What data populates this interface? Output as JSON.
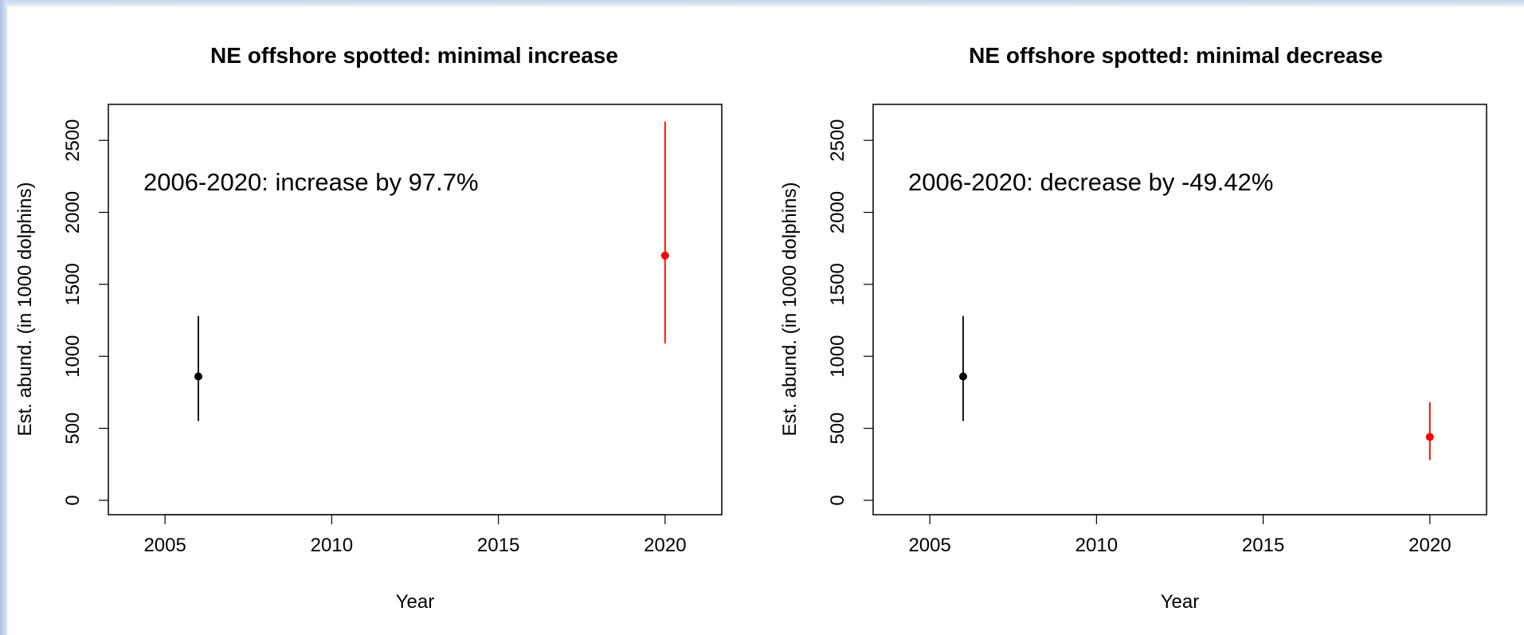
{
  "chart_data": [
    {
      "type": "scatter",
      "title": "NE offshore spotted: minimal increase",
      "xlabel": "Year",
      "ylabel": "Est. abund. (in 1000 dolphins)",
      "xlim": [
        2003.3,
        2021.7
      ],
      "ylim": [
        -100,
        2750
      ],
      "xticks": [
        2005,
        2010,
        2015,
        2020
      ],
      "yticks": [
        0,
        500,
        1000,
        1500,
        2000,
        2500
      ],
      "annotation": "2006-2020: increase by 97.7%",
      "points": [
        {
          "x": 2006,
          "y": 860,
          "lower": 550,
          "upper": 1280,
          "color": "#000000"
        },
        {
          "x": 2020,
          "y": 1700,
          "lower": 1090,
          "upper": 2630,
          "color": "#ff0000"
        }
      ],
      "grid": false,
      "legend": null
    },
    {
      "type": "scatter",
      "title": "NE offshore spotted: minimal decrease",
      "xlabel": "Year",
      "ylabel": "Est. abund. (in 1000 dolphins)",
      "xlim": [
        2003.3,
        2021.7
      ],
      "ylim": [
        -100,
        2750
      ],
      "xticks": [
        2005,
        2010,
        2015,
        2020
      ],
      "yticks": [
        0,
        500,
        1000,
        1500,
        2000,
        2500
      ],
      "annotation": "2006-2020: decrease by -49.42%",
      "points": [
        {
          "x": 2006,
          "y": 860,
          "lower": 550,
          "upper": 1280,
          "color": "#000000"
        },
        {
          "x": 2020,
          "y": 440,
          "lower": 280,
          "upper": 680,
          "color": "#ff0000"
        }
      ],
      "grid": false,
      "legend": null
    }
  ]
}
